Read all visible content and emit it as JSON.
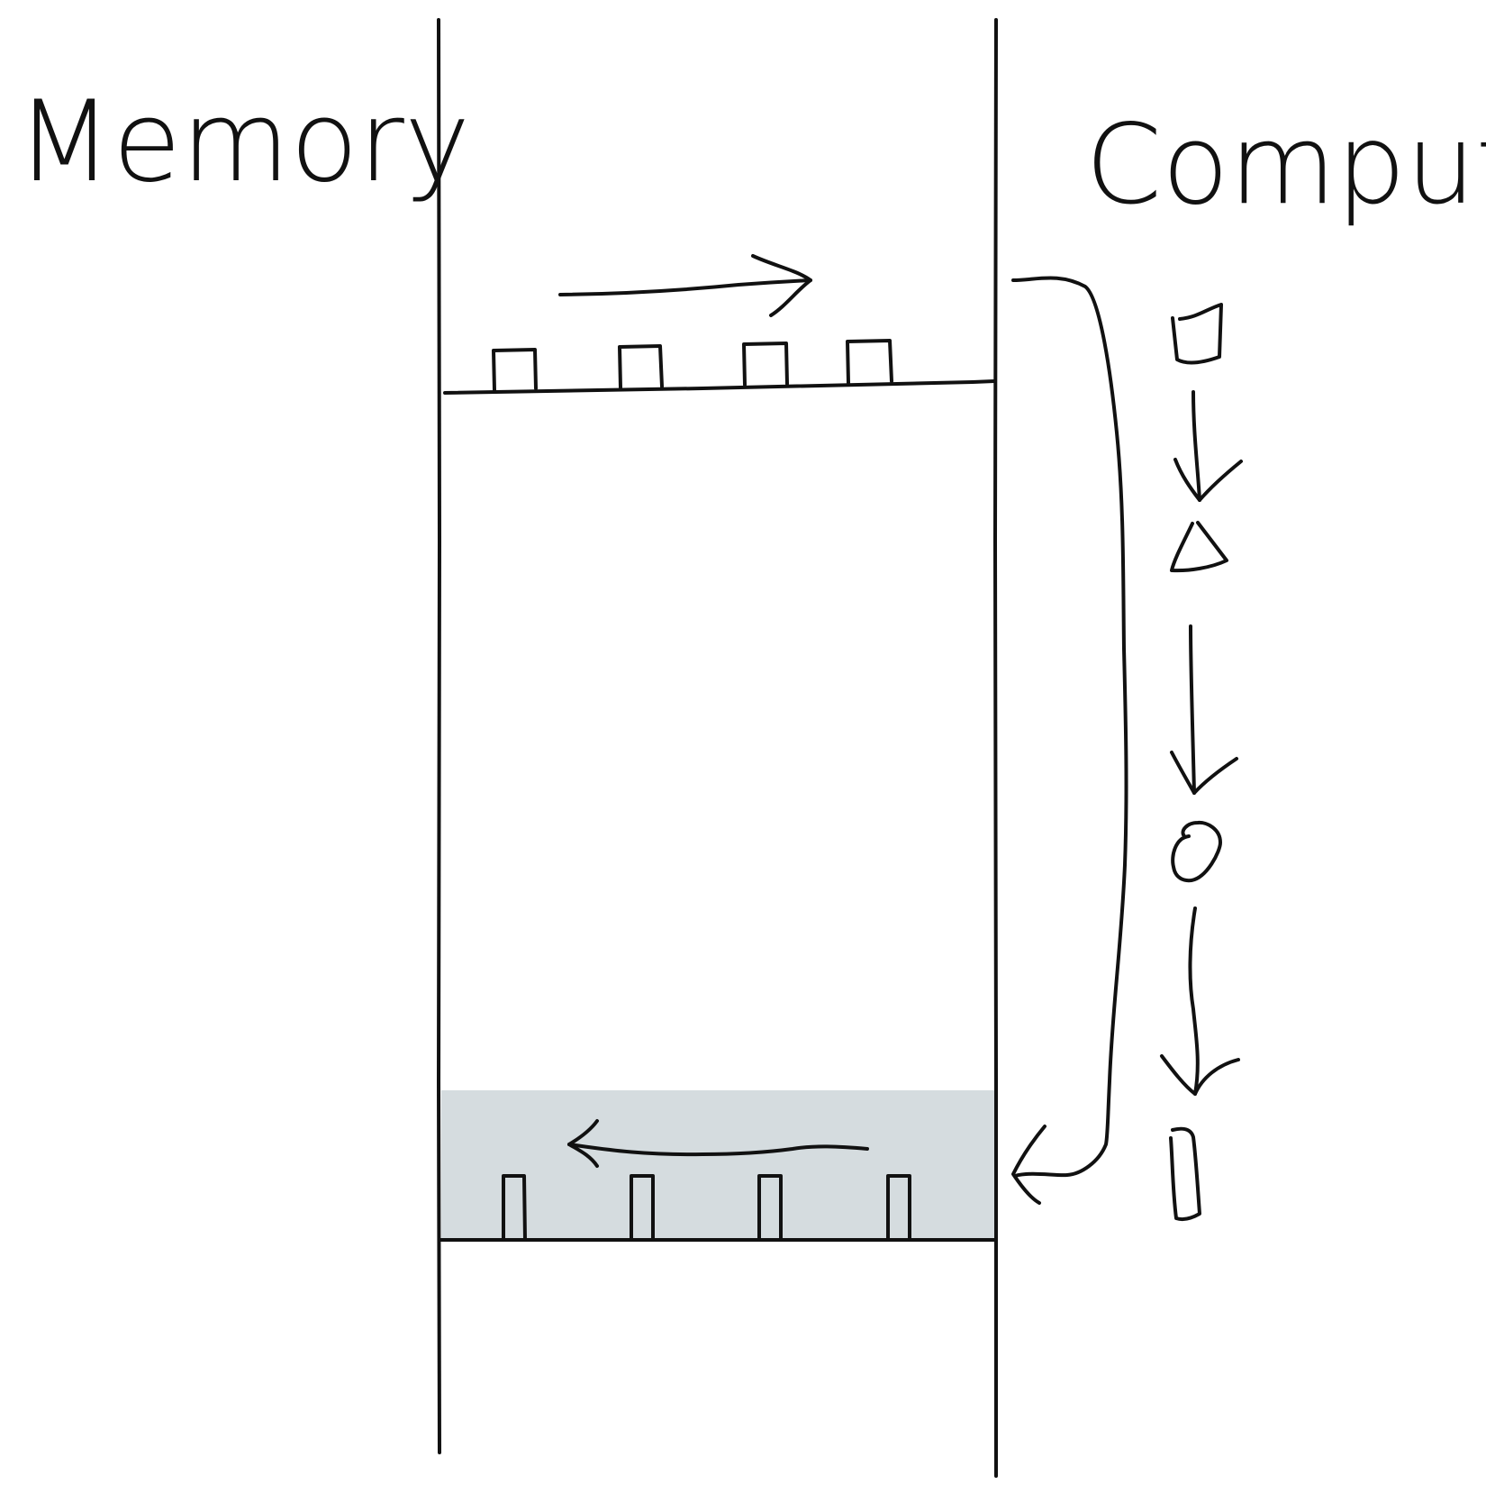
{
  "labels": {
    "memory": "Memory",
    "compute": "Compute"
  },
  "colors": {
    "ink": "#111111",
    "shaded_region": "#d5dcdf",
    "background": "#ffffff"
  },
  "memory_rows": [
    {
      "name": "input-row",
      "cell_count": 4,
      "cell_shape": "square",
      "arrow_direction": "right"
    },
    {
      "name": "output-row",
      "cell_count": 4,
      "cell_shape": "narrow-rectangle",
      "arrow_direction": "left",
      "shaded": true
    }
  ],
  "compute_stages": [
    {
      "shape": "square-icon"
    },
    {
      "shape": "triangle-icon"
    },
    {
      "shape": "circle-icon"
    },
    {
      "shape": "narrow-rectangle-icon"
    }
  ]
}
